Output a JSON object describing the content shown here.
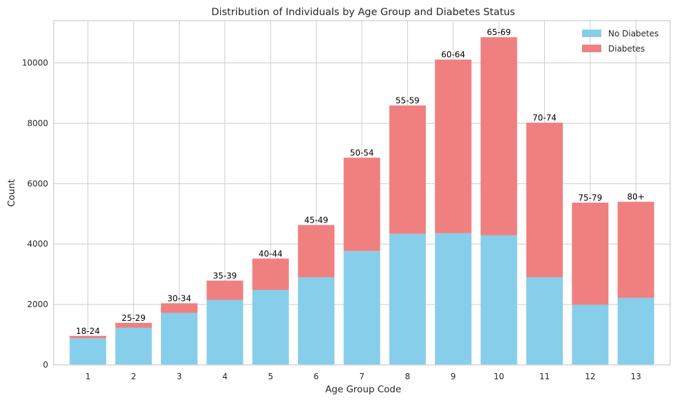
{
  "chart_data": {
    "type": "bar",
    "stacked": true,
    "title": "Distribution of Individuals by Age Group and Diabetes Status",
    "xlabel": "Age Group Code",
    "ylabel": "Count",
    "categories": [
      "1",
      "2",
      "3",
      "4",
      "5",
      "6",
      "7",
      "8",
      "9",
      "10",
      "11",
      "12",
      "13"
    ],
    "bar_labels": [
      "18-24",
      "25-29",
      "30-34",
      "35-39",
      "40-44",
      "45-49",
      "50-54",
      "55-59",
      "60-64",
      "65-69",
      "70-74",
      "75-79",
      "80+"
    ],
    "series": [
      {
        "name": "No Diabetes",
        "color": "#87CEEB",
        "values": [
          880,
          1230,
          1720,
          2150,
          2480,
          2900,
          3770,
          4340,
          4360,
          4290,
          2900,
          1990,
          2220
        ]
      },
      {
        "name": "Diabetes",
        "color": "#F08080",
        "values": [
          80,
          160,
          320,
          640,
          1040,
          1730,
          3090,
          4250,
          5750,
          6560,
          5120,
          3380,
          3180
        ]
      }
    ],
    "ylim": [
      0,
      11400
    ],
    "yticks": [
      0,
      2000,
      4000,
      6000,
      8000,
      10000
    ],
    "grid": true,
    "legend": "top-right"
  }
}
